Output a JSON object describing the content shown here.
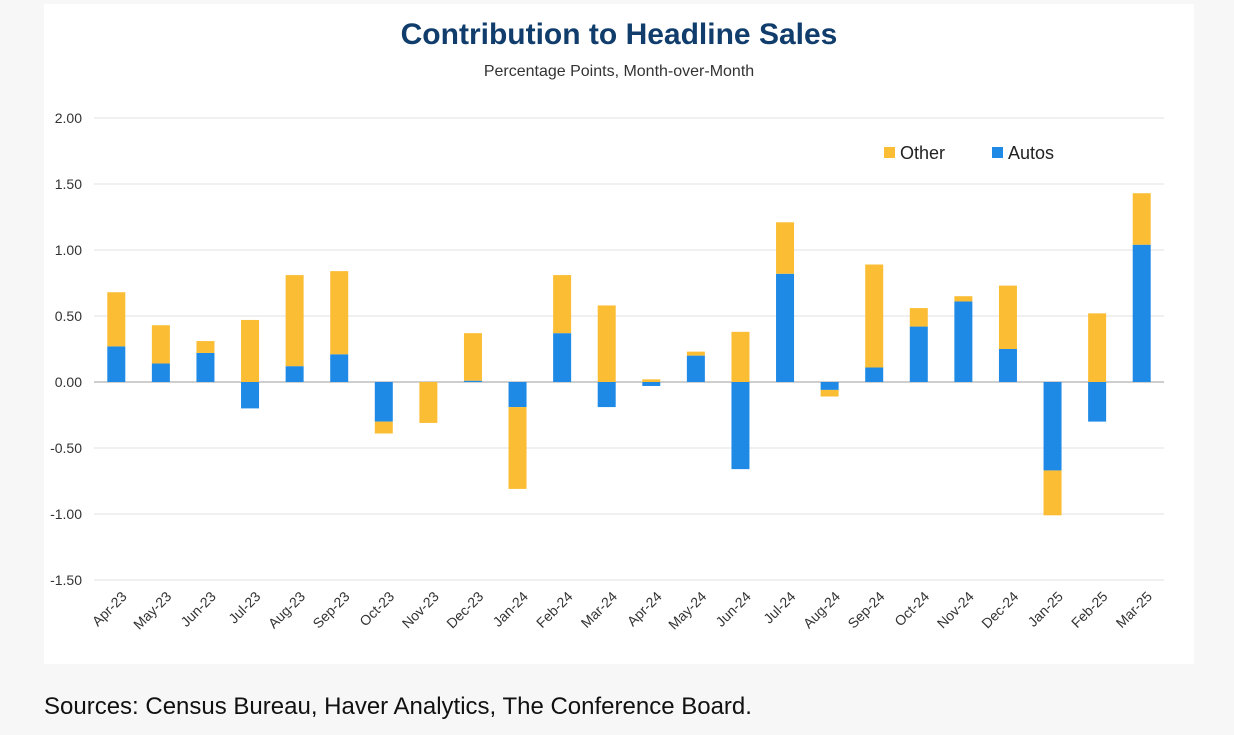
{
  "source_note": "Sources: Census Bureau, Haver Analytics, The Conference Board.",
  "chart_data": {
    "type": "bar",
    "stacked": true,
    "title": "Contribution to Headline Sales",
    "subtitle": "Percentage Points, Month-over-Month",
    "xlabel": "",
    "ylabel": "",
    "ylim": [
      -1.5,
      2.0
    ],
    "yticks": [
      "2.00",
      "1.50",
      "1.00",
      "0.50",
      "0.00",
      "-0.50",
      "-1.00",
      "-1.50"
    ],
    "ytick_values": [
      2.0,
      1.5,
      1.0,
      0.5,
      0.0,
      -0.5,
      -1.0,
      -1.5
    ],
    "grid": true,
    "legend_position": "top-right",
    "categories": [
      "Apr-23",
      "May-23",
      "Jun-23",
      "Jul-23",
      "Aug-23",
      "Sep-23",
      "Oct-23",
      "Nov-23",
      "Dec-23",
      "Jan-24",
      "Feb-24",
      "Mar-24",
      "Apr-24",
      "May-24",
      "Jun-24",
      "Jul-24",
      "Aug-24",
      "Sep-24",
      "Oct-24",
      "Nov-24",
      "Dec-24",
      "Jan-25",
      "Feb-25",
      "Mar-25"
    ],
    "series": [
      {
        "name": "Autos",
        "color": "#1e8ae6",
        "values": [
          0.27,
          0.14,
          0.22,
          -0.2,
          0.12,
          0.21,
          -0.3,
          0.0,
          0.01,
          -0.19,
          0.37,
          -0.19,
          -0.03,
          0.2,
          -0.66,
          0.82,
          -0.06,
          0.11,
          0.42,
          0.61,
          0.25,
          -0.67,
          -0.3,
          1.04
        ]
      },
      {
        "name": "Other",
        "color": "#fbbd34",
        "values": [
          0.41,
          0.29,
          0.09,
          0.47,
          0.69,
          0.63,
          -0.09,
          -0.31,
          0.36,
          -0.62,
          0.44,
          0.58,
          0.02,
          0.03,
          0.38,
          0.39,
          -0.05,
          0.78,
          0.14,
          0.04,
          0.48,
          -0.34,
          0.52,
          0.39
        ]
      }
    ],
    "legend_order": [
      "Other",
      "Autos"
    ]
  }
}
